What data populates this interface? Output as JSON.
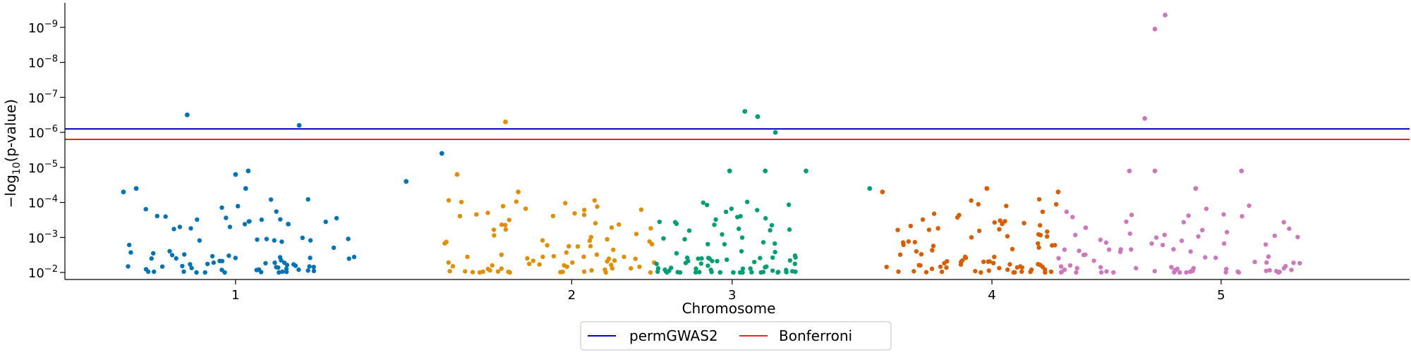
{
  "chart_data": {
    "type": "scatter",
    "title": "",
    "xlabel": "Chromosome",
    "ylabel_prefix": "−log",
    "ylabel_sub": "10",
    "ylabel_suffix": "(p-value)",
    "y_scale": "log",
    "y_ticks": [
      {
        "exp": -2,
        "base": "10",
        "sup": "−2"
      },
      {
        "exp": -3,
        "base": "10",
        "sup": "−3"
      },
      {
        "exp": -4,
        "base": "10",
        "sup": "−4"
      },
      {
        "exp": -5,
        "base": "10",
        "sup": "−5"
      },
      {
        "exp": -6,
        "base": "10",
        "sup": "−6"
      },
      {
        "exp": -7,
        "base": "10",
        "sup": "−7"
      },
      {
        "exp": -8,
        "base": "10",
        "sup": "−8"
      },
      {
        "exp": -9,
        "base": "10",
        "sup": "−9"
      }
    ],
    "x_ticks": [
      {
        "label": "1",
        "x": 1.25
      },
      {
        "label": "2",
        "x": 2.57
      },
      {
        "label": "3",
        "x": 3.2
      },
      {
        "label": "4",
        "x": 4.22
      },
      {
        "label": "5",
        "x": 5.12
      }
    ],
    "xlim": [
      0.58,
      5.86
    ],
    "ylim_exp": [
      -1.8,
      -9.7
    ],
    "grid": false,
    "legend_position": "bottom-center",
    "thresholds": [
      {
        "name": "permGWAS2",
        "exp": -6.1,
        "color": "#0000cc"
      },
      {
        "name": "Bonferroni",
        "exp": -5.8,
        "color": "#e8251f"
      }
    ],
    "series": [
      {
        "chromosome": "1",
        "color": "#0173b2",
        "x_range": [
          0.82,
          1.72
        ],
        "highlights": [
          {
            "x": 1.06,
            "exp": -6.5
          },
          {
            "x": 1.5,
            "exp": -6.2
          },
          {
            "x": 2.06,
            "exp": -5.4
          },
          {
            "x": 1.25,
            "exp": -4.8
          },
          {
            "x": 1.3,
            "exp": -4.9
          },
          {
            "x": 1.29,
            "exp": -4.4
          },
          {
            "x": 1.92,
            "exp": -4.6
          },
          {
            "x": 0.81,
            "exp": -4.3
          },
          {
            "x": 0.86,
            "exp": -4.4
          }
        ]
      },
      {
        "chromosome": "2",
        "color": "#de8f05",
        "x_range": [
          2.05,
          2.9
        ],
        "highlights": [
          {
            "x": 2.31,
            "exp": -6.3
          },
          {
            "x": 2.12,
            "exp": -4.8
          },
          {
            "x": 2.36,
            "exp": -4.3
          }
        ]
      },
      {
        "chromosome": "3",
        "color": "#029e73",
        "x_range": [
          2.9,
          3.47
        ],
        "highlights": [
          {
            "x": 3.25,
            "exp": -6.6
          },
          {
            "x": 3.3,
            "exp": -6.45
          },
          {
            "x": 3.37,
            "exp": -6.0
          },
          {
            "x": 3.19,
            "exp": -4.9
          },
          {
            "x": 3.33,
            "exp": -4.9
          },
          {
            "x": 3.49,
            "exp": -4.9
          },
          {
            "x": 3.74,
            "exp": -4.4
          }
        ]
      },
      {
        "chromosome": "4",
        "color": "#d55e00",
        "x_range": [
          3.8,
          4.48
        ],
        "highlights": [
          {
            "x": 3.79,
            "exp": -4.3
          },
          {
            "x": 4.2,
            "exp": -4.4
          },
          {
            "x": 4.48,
            "exp": -4.3
          }
        ]
      },
      {
        "chromosome": "5",
        "color": "#cc78bc",
        "x_range": [
          4.48,
          5.45
        ],
        "highlights": [
          {
            "x": 4.9,
            "exp": -9.35
          },
          {
            "x": 4.86,
            "exp": -8.95
          },
          {
            "x": 4.82,
            "exp": -6.4
          },
          {
            "x": 4.76,
            "exp": -4.9
          },
          {
            "x": 4.86,
            "exp": -4.9
          },
          {
            "x": 5.2,
            "exp": -4.9
          },
          {
            "x": 5.02,
            "exp": -4.4
          }
        ]
      }
    ]
  }
}
